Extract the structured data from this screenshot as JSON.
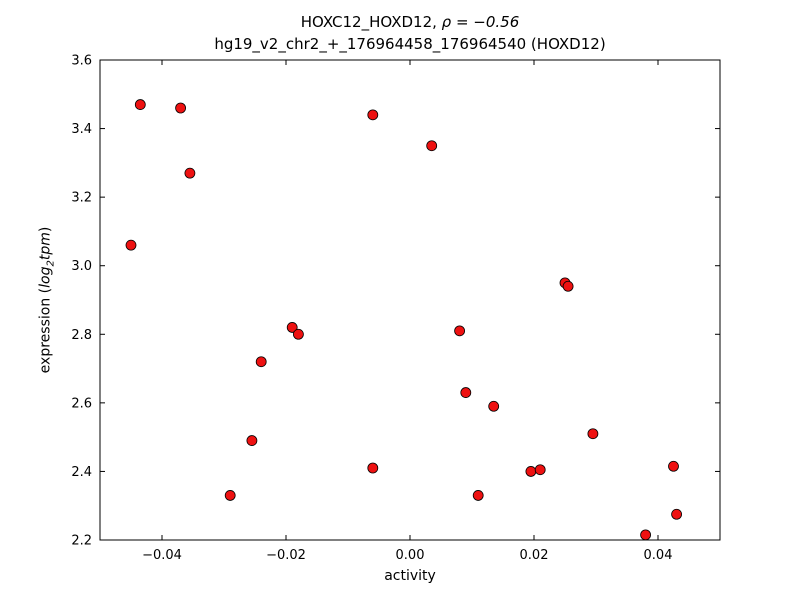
{
  "chart_data": {
    "type": "scatter",
    "title": "HOXC12_HOXD12, ρ = −0.56",
    "title_prefix": "HOXC12_HOXD12, ",
    "title_math": "ρ = −0.56",
    "subtitle": "hg19_v2_chr2_+_176964458_176964540 (HOXD12)",
    "xlabel": "activity",
    "ylabel": "expression (log2 tpm)",
    "ylabel_parts": {
      "prefix": "expression (",
      "base": "log",
      "sub": "2",
      "unit": "tpm",
      "suffix": ")"
    },
    "xlim": [
      -0.05,
      0.05
    ],
    "ylim": [
      2.2,
      3.6
    ],
    "xticks": [
      -0.04,
      -0.02,
      0.0,
      0.02,
      0.04
    ],
    "yticks": [
      2.2,
      2.4,
      2.6,
      2.8,
      3.0,
      3.2,
      3.4,
      3.6
    ],
    "grid": false,
    "legend": "none",
    "marker_color": "#ee1111",
    "marker_edge": "#000000",
    "points": [
      [
        -0.045,
        3.06
      ],
      [
        -0.0435,
        3.47
      ],
      [
        -0.037,
        3.46
      ],
      [
        -0.0355,
        3.27
      ],
      [
        -0.029,
        2.33
      ],
      [
        -0.0255,
        2.49
      ],
      [
        -0.024,
        2.72
      ],
      [
        -0.019,
        2.82
      ],
      [
        -0.018,
        2.8
      ],
      [
        -0.006,
        3.44
      ],
      [
        -0.006,
        2.41
      ],
      [
        0.0035,
        3.35
      ],
      [
        0.008,
        2.81
      ],
      [
        0.009,
        2.63
      ],
      [
        0.011,
        2.33
      ],
      [
        0.0135,
        2.59
      ],
      [
        0.0195,
        2.4
      ],
      [
        0.021,
        2.405
      ],
      [
        0.025,
        2.95
      ],
      [
        0.0255,
        2.94
      ],
      [
        0.0295,
        2.51
      ],
      [
        0.038,
        2.215
      ],
      [
        0.0425,
        2.415
      ],
      [
        0.043,
        2.275
      ]
    ]
  }
}
